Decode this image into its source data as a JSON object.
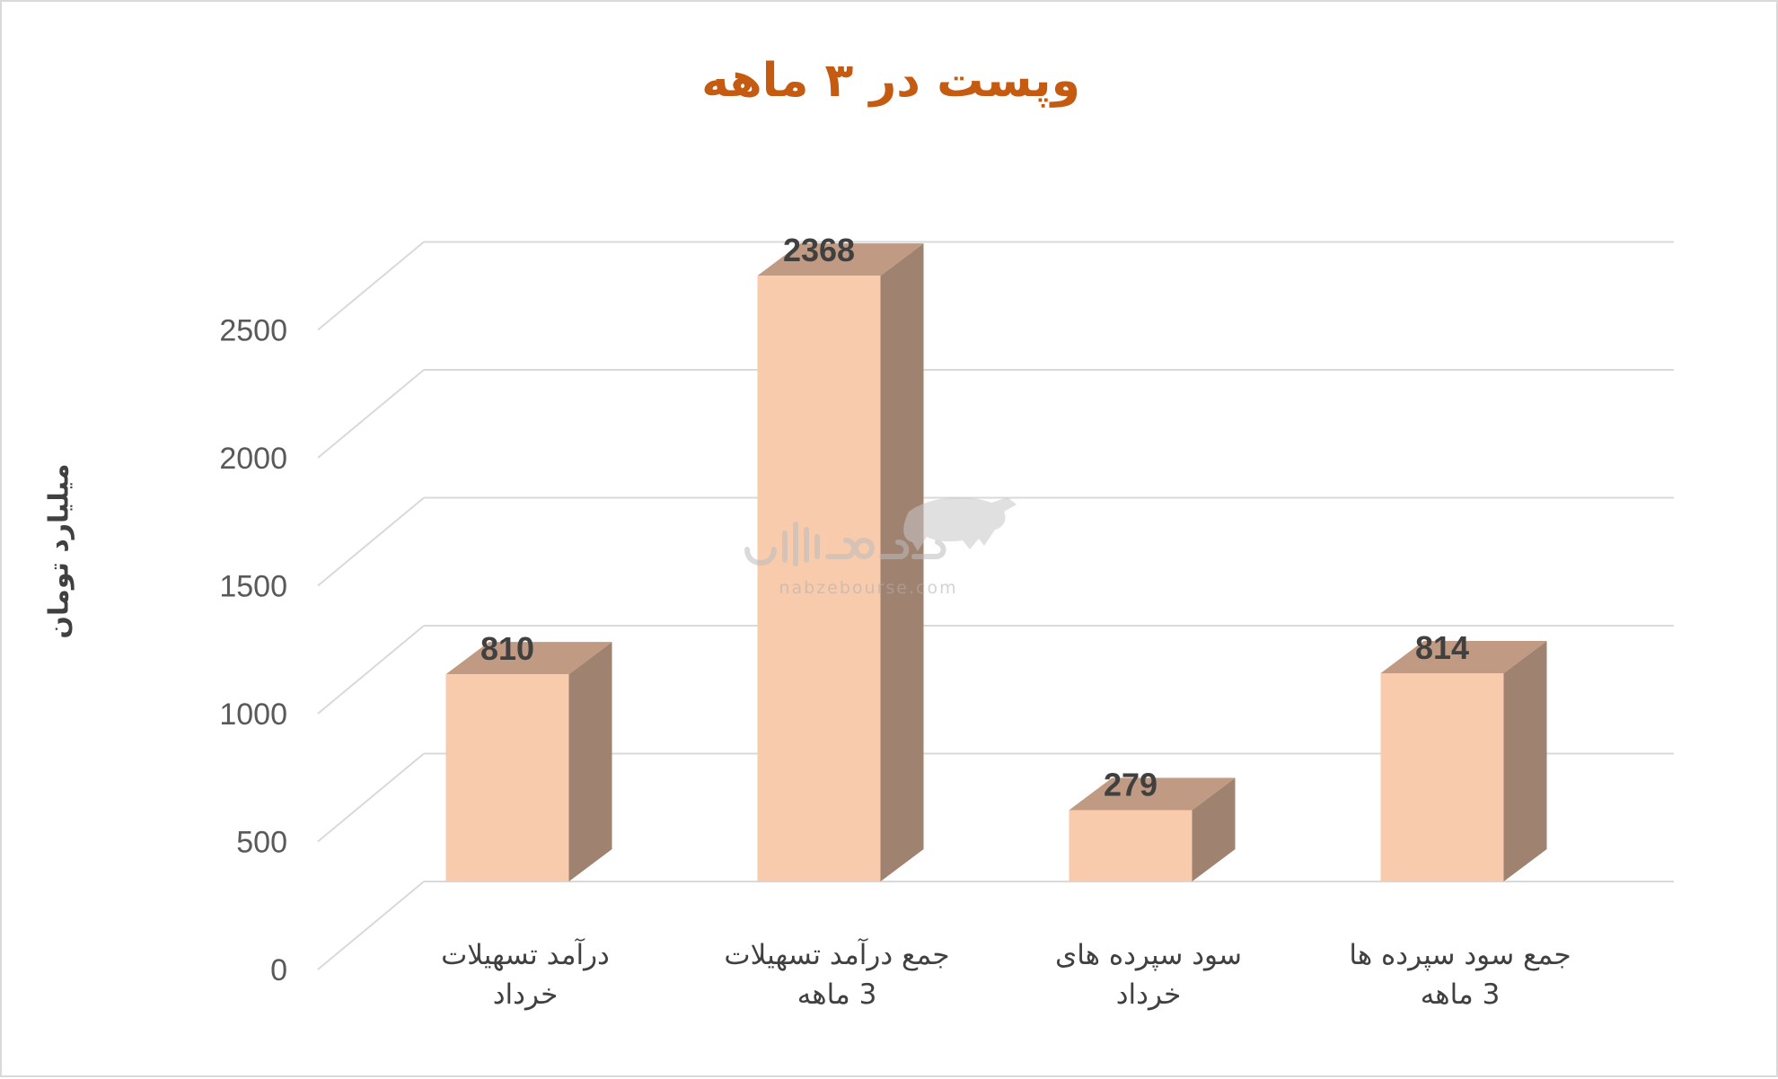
{
  "chart_data": {
    "type": "bar",
    "title": "وپست در ۳ ماهه",
    "ylabel": "میلیارد تومان",
    "xlabel": "",
    "ylim": [
      0,
      2500
    ],
    "yticks": [
      0,
      500,
      1000,
      1500,
      2000,
      2500
    ],
    "categories": [
      [
        "درآمد تسهیلات",
        "خرداد"
      ],
      [
        "جمع درآمد تسهیلات",
        "3 ماهه"
      ],
      [
        "سود سپرده های",
        "خرداد"
      ],
      [
        "جمع سود سپرده ها",
        "3 ماهه"
      ]
    ],
    "values": [
      810,
      2368,
      279,
      814
    ],
    "grid": true,
    "style": "3d-column",
    "colors": {
      "bar_front": "#f8cbad",
      "bar_top": "#c09a82",
      "bar_side": "#a08270",
      "title": "#c55a11",
      "grid": "#d9d9d9"
    }
  },
  "watermark": {
    "brand": "نبض بورس",
    "url": "nabzebourse.com",
    "icon": "bull-icon"
  }
}
